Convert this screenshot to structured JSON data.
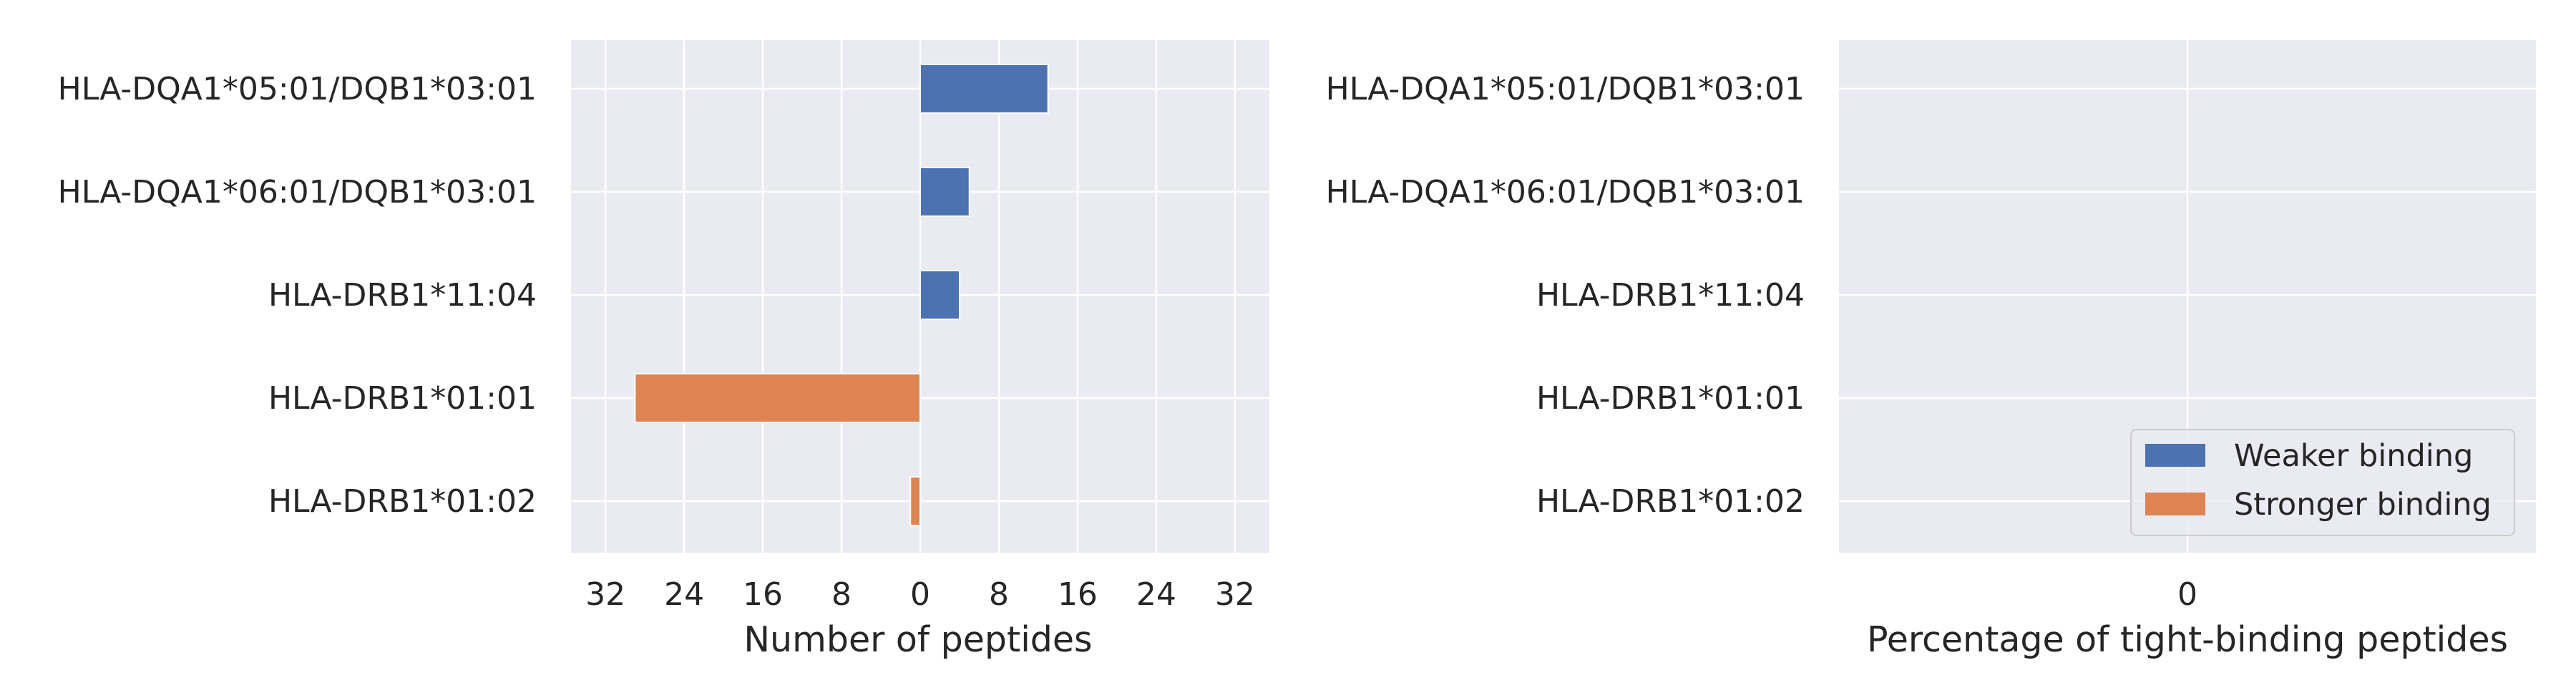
{
  "chart_data": [
    {
      "type": "bar",
      "orientation": "horizontal",
      "diverging": true,
      "categories": [
        "HLA-DQA1*05:01/DQB1*03:01",
        "HLA-DQA1*06:01/DQB1*03:01",
        "HLA-DRB1*11:04",
        "HLA-DRB1*01:01",
        "HLA-DRB1*01:02"
      ],
      "series": [
        {
          "name": "Weaker binding",
          "values": [
            13,
            5,
            4,
            0,
            0
          ]
        },
        {
          "name": "Stronger binding",
          "values": [
            0,
            0,
            0,
            29,
            1
          ]
        }
      ],
      "xticks": [
        -32,
        -24,
        -16,
        -8,
        0,
        8,
        16,
        24,
        32
      ],
      "xtick_labels": [
        "32",
        "24",
        "16",
        "8",
        "0",
        "8",
        "16",
        "24",
        "32"
      ],
      "xlim": [
        -32,
        32
      ],
      "xlabel": "Number of peptides",
      "grid": true
    },
    {
      "type": "bar",
      "orientation": "horizontal",
      "categories": [
        "HLA-DQA1*05:01/DQB1*03:01",
        "HLA-DQA1*06:01/DQB1*03:01",
        "HLA-DRB1*11:04",
        "HLA-DRB1*01:01",
        "HLA-DRB1*01:02"
      ],
      "series": [
        {
          "name": "Weaker binding",
          "values": [
            0,
            0,
            0,
            0,
            0
          ]
        },
        {
          "name": "Stronger binding",
          "values": [
            0,
            0,
            0,
            0,
            0
          ]
        }
      ],
      "xticks": [
        0
      ],
      "xtick_labels": [
        "0"
      ],
      "xlabel": "Percentage of tight-binding peptides",
      "legend": {
        "placement": "lower-right",
        "entries": [
          "Weaker binding",
          "Stronger binding"
        ]
      },
      "grid": true
    }
  ],
  "colors": {
    "weaker": "#4c72b0",
    "stronger": "#dd8452",
    "panel_background": "#eaeaf2",
    "grid": "#ffffff",
    "text": "#262626"
  }
}
